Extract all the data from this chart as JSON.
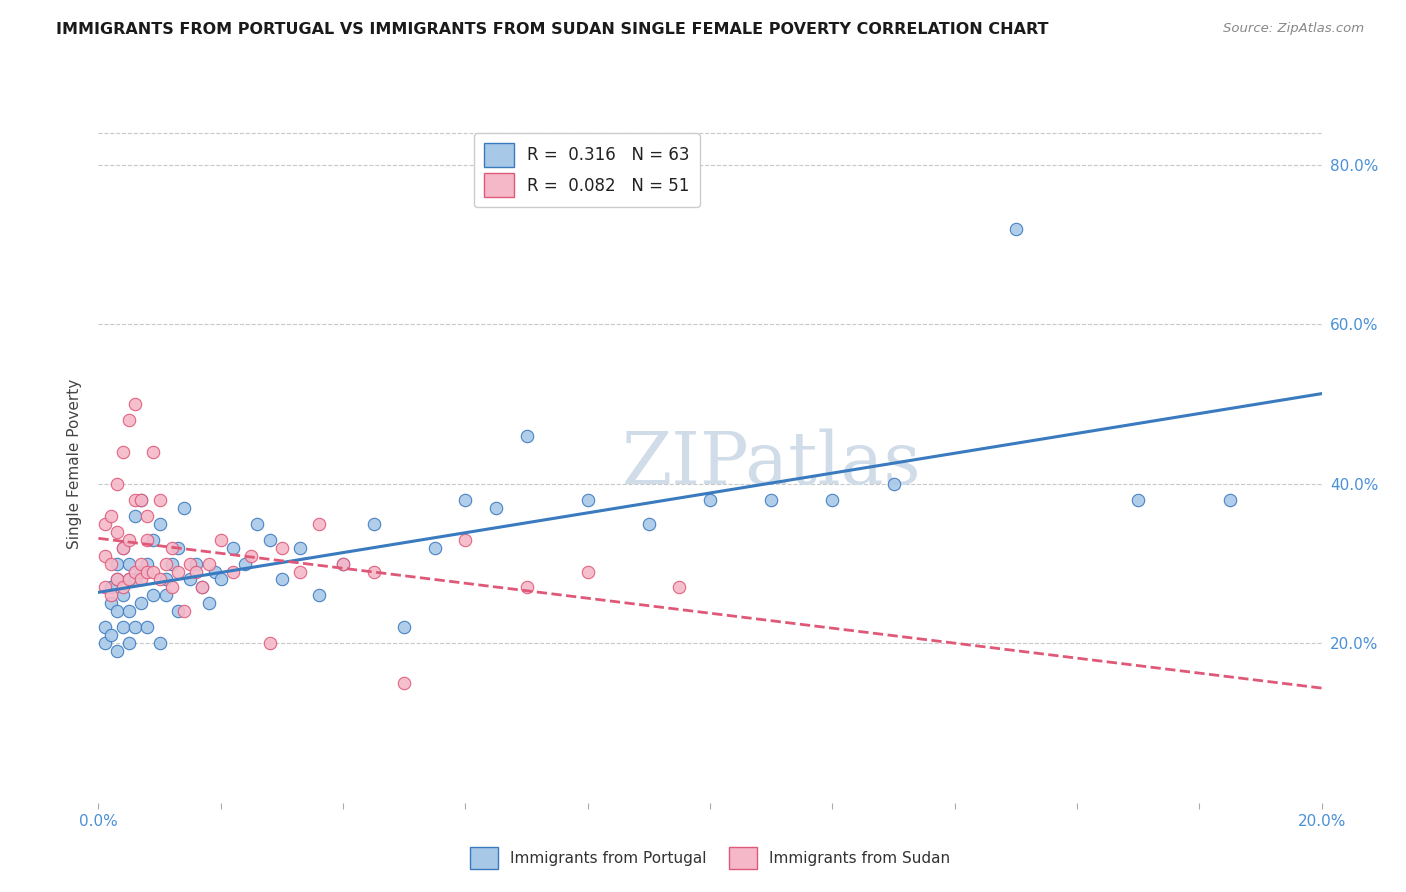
{
  "title": "IMMIGRANTS FROM PORTUGAL VS IMMIGRANTS FROM SUDAN SINGLE FEMALE POVERTY CORRELATION CHART",
  "source": "Source: ZipAtlas.com",
  "ylabel": "Single Female Poverty",
  "legend_entries": [
    "Immigrants from Portugal",
    "Immigrants from Sudan"
  ],
  "r_portugal": 0.316,
  "n_portugal": 63,
  "r_sudan": 0.082,
  "n_sudan": 51,
  "xlim": [
    0.0,
    0.2
  ],
  "ylim": [
    0.0,
    0.85
  ],
  "color_portugal": "#a8c8e8",
  "color_sudan": "#f5b8c8",
  "line_color_portugal": "#3a7abf",
  "line_color_sudan": "#e05878",
  "portugal_x": [
    0.001,
    0.001,
    0.002,
    0.002,
    0.002,
    0.003,
    0.003,
    0.003,
    0.003,
    0.004,
    0.004,
    0.004,
    0.005,
    0.005,
    0.005,
    0.005,
    0.006,
    0.006,
    0.006,
    0.007,
    0.007,
    0.007,
    0.008,
    0.008,
    0.009,
    0.009,
    0.01,
    0.01,
    0.011,
    0.011,
    0.012,
    0.013,
    0.013,
    0.014,
    0.015,
    0.016,
    0.017,
    0.018,
    0.019,
    0.02,
    0.022,
    0.024,
    0.026,
    0.028,
    0.03,
    0.033,
    0.036,
    0.04,
    0.045,
    0.05,
    0.055,
    0.06,
    0.065,
    0.07,
    0.08,
    0.09,
    0.1,
    0.11,
    0.12,
    0.13,
    0.15,
    0.17,
    0.185
  ],
  "portugal_y": [
    0.22,
    0.2,
    0.25,
    0.27,
    0.21,
    0.24,
    0.28,
    0.3,
    0.19,
    0.22,
    0.32,
    0.26,
    0.2,
    0.28,
    0.24,
    0.3,
    0.22,
    0.36,
    0.28,
    0.25,
    0.38,
    0.29,
    0.22,
    0.3,
    0.26,
    0.33,
    0.2,
    0.35,
    0.28,
    0.26,
    0.3,
    0.24,
    0.32,
    0.37,
    0.28,
    0.3,
    0.27,
    0.25,
    0.29,
    0.28,
    0.32,
    0.3,
    0.35,
    0.33,
    0.28,
    0.32,
    0.26,
    0.3,
    0.35,
    0.22,
    0.32,
    0.38,
    0.37,
    0.46,
    0.38,
    0.35,
    0.38,
    0.38,
    0.38,
    0.4,
    0.72,
    0.38,
    0.38
  ],
  "sudan_x": [
    0.001,
    0.001,
    0.001,
    0.002,
    0.002,
    0.002,
    0.003,
    0.003,
    0.003,
    0.004,
    0.004,
    0.004,
    0.005,
    0.005,
    0.005,
    0.006,
    0.006,
    0.006,
    0.007,
    0.007,
    0.007,
    0.008,
    0.008,
    0.008,
    0.009,
    0.009,
    0.01,
    0.01,
    0.011,
    0.012,
    0.012,
    0.013,
    0.014,
    0.015,
    0.016,
    0.017,
    0.018,
    0.02,
    0.022,
    0.025,
    0.028,
    0.03,
    0.033,
    0.036,
    0.04,
    0.045,
    0.05,
    0.06,
    0.07,
    0.08,
    0.095
  ],
  "sudan_y": [
    0.27,
    0.31,
    0.35,
    0.26,
    0.3,
    0.36,
    0.28,
    0.34,
    0.4,
    0.27,
    0.32,
    0.44,
    0.28,
    0.33,
    0.48,
    0.29,
    0.5,
    0.38,
    0.3,
    0.38,
    0.28,
    0.29,
    0.33,
    0.36,
    0.29,
    0.44,
    0.28,
    0.38,
    0.3,
    0.27,
    0.32,
    0.29,
    0.24,
    0.3,
    0.29,
    0.27,
    0.3,
    0.33,
    0.29,
    0.31,
    0.2,
    0.32,
    0.29,
    0.35,
    0.3,
    0.29,
    0.15,
    0.33,
    0.27,
    0.29,
    0.27
  ],
  "watermark": "ZIPatlas",
  "watermark_color": "#d0dce8"
}
